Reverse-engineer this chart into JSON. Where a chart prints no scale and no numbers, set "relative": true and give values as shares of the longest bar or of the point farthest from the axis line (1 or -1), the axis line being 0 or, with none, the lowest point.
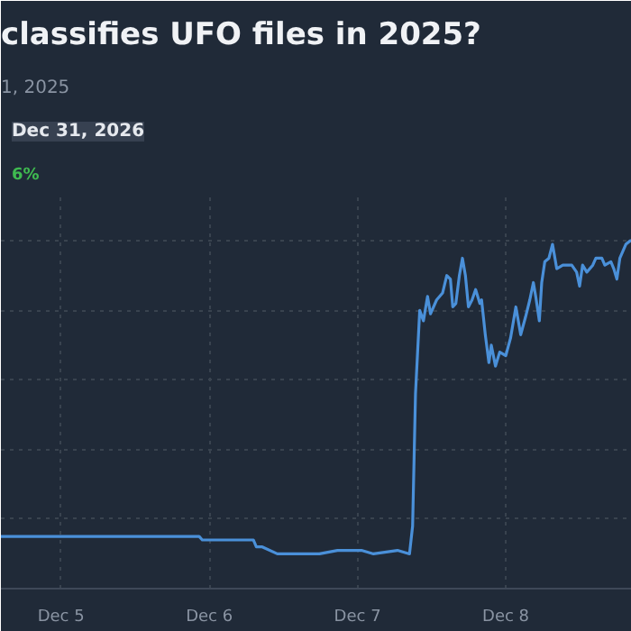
{
  "chart_data": {
    "type": "line",
    "title": "classifies UFO files in 2025?",
    "subtitle": "1, 2025",
    "annotations": [
      "Dec 31, 2026",
      "6%"
    ],
    "relative": true,
    "grid": true,
    "x": [
      "2025-12-04T14:16",
      "2025-12-05T22:22",
      "2025-12-05T22:52",
      "2025-12-06T07:08",
      "2025-12-06T07:37",
      "2025-12-06T08:35",
      "2025-12-06T11:01",
      "2025-12-06T17:50",
      "2025-12-06T20:45",
      "2025-12-07T00:38",
      "2025-12-07T02:35",
      "2025-12-07T06:28",
      "2025-12-07T08:25",
      "2025-12-07T08:55",
      "2025-12-07T09:23",
      "2025-12-07T10:04",
      "2025-12-07T10:40",
      "2025-12-07T11:20",
      "2025-12-07T11:49",
      "2025-12-07T12:48",
      "2025-12-07T13:46",
      "2025-12-07T14:27",
      "2025-12-07T15:02",
      "2025-12-07T15:25",
      "2025-12-07T15:55",
      "2025-12-07T16:29",
      "2025-12-07T16:59",
      "2025-12-07T17:28",
      "2025-12-07T17:57",
      "2025-12-07T18:32",
      "2025-12-07T19:07",
      "2025-12-07T19:48",
      "2025-12-07T20:05",
      "2025-12-07T20:41",
      "2025-12-07T21:16",
      "2025-12-07T21:39",
      "2025-12-07T22:20",
      "2025-12-07T23:01",
      "2025-12-08T00:00",
      "2025-12-08T00:46",
      "2025-12-08T01:38",
      "2025-12-08T02:25",
      "2025-12-08T03:11",
      "2025-12-08T03:53",
      "2025-12-08T04:28",
      "2025-12-08T04:51",
      "2025-12-08T05:26",
      "2025-12-08T05:49",
      "2025-12-08T06:19",
      "2025-12-08T06:59",
      "2025-12-08T07:34",
      "2025-12-08T08:15",
      "2025-12-08T09:14",
      "2025-12-08T10:41",
      "2025-12-08T11:28",
      "2025-12-08T11:57",
      "2025-12-08T12:26",
      "2025-12-08T13:07",
      "2025-12-08T14:05",
      "2025-12-08T14:35",
      "2025-12-08T15:33",
      "2025-12-08T16:02",
      "2025-12-08T17:01",
      "2025-12-08T17:29",
      "2025-12-08T17:59",
      "2025-12-08T18:28",
      "2025-12-08T19:26",
      "2025-12-08T20:07",
      "2025-12-08T20:25"
    ],
    "series": [
      {
        "color": "#4a90d9",
        "values": [
          0.15,
          0.15,
          0.14,
          0.14,
          0.12,
          0.12,
          0.1,
          0.1,
          0.11,
          0.11,
          0.1,
          0.11,
          0.1,
          0.18,
          0.56,
          0.8,
          0.77,
          0.84,
          0.79,
          0.83,
          0.85,
          0.9,
          0.89,
          0.81,
          0.82,
          0.9,
          0.95,
          0.9,
          0.81,
          0.83,
          0.86,
          0.82,
          0.83,
          0.73,
          0.65,
          0.7,
          0.64,
          0.68,
          0.67,
          0.72,
          0.81,
          0.73,
          0.78,
          0.83,
          0.88,
          0.84,
          0.77,
          0.88,
          0.94,
          0.95,
          0.99,
          0.92,
          0.93,
          0.93,
          0.91,
          0.87,
          0.93,
          0.91,
          0.93,
          0.95,
          0.95,
          0.93,
          0.94,
          0.92,
          0.89,
          0.95,
          0.99,
          1.0,
          1.0
        ]
      }
    ],
    "xlim": [
      "2025-12-04T14:16",
      "2025-12-08T20:25"
    ],
    "xticks": [
      {
        "value": "2025-12-05",
        "label": "Dec 5"
      },
      {
        "value": "2025-12-06",
        "label": "Dec 6"
      },
      {
        "value": "2025-12-07",
        "label": "Dec 7"
      },
      {
        "value": "2025-12-08",
        "label": "Dec 8"
      }
    ]
  }
}
